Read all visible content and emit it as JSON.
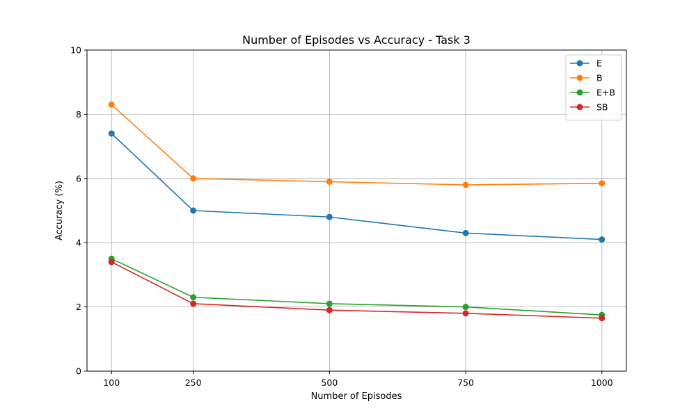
{
  "chart_data": {
    "type": "line",
    "title": "Number of Episodes vs Accuracy - Task 3",
    "xlabel": "Number of Episodes",
    "ylabel": "Accuracy (%)",
    "x": [
      100,
      250,
      500,
      750,
      1000
    ],
    "x_ticks": [
      "100",
      "250",
      "500",
      "750",
      "1000"
    ],
    "xlim": [
      55,
      1045
    ],
    "ylim": [
      0,
      10
    ],
    "y_ticks": [
      "0",
      "2",
      "4",
      "6",
      "8",
      "10"
    ],
    "grid": true,
    "legend_position": "top-right",
    "series": [
      {
        "name": "E",
        "color": "#1f77b4",
        "values": [
          7.4,
          5.0,
          4.8,
          4.3,
          4.1
        ]
      },
      {
        "name": "B",
        "color": "#ff7f0e",
        "values": [
          8.3,
          6.0,
          5.9,
          5.8,
          5.85
        ]
      },
      {
        "name": "E+B",
        "color": "#2ca02c",
        "values": [
          3.5,
          2.3,
          2.1,
          2.0,
          1.75
        ]
      },
      {
        "name": "SB",
        "color": "#d62728",
        "values": [
          3.4,
          2.1,
          1.9,
          1.8,
          1.65
        ]
      }
    ]
  }
}
